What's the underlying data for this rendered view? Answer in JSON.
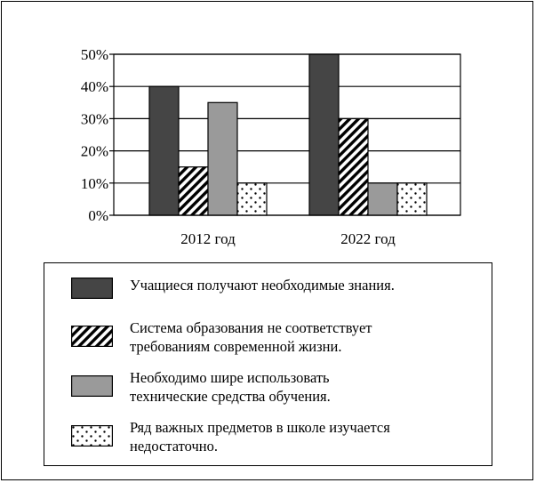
{
  "chart_data": {
    "type": "bar",
    "categories": [
      "2012 год",
      "2022 год"
    ],
    "series": [
      {
        "name": "Учащиеся получают необходимые знания.",
        "values": [
          40,
          50
        ],
        "fill": "dark"
      },
      {
        "name": "Система образования не соответствует требованиям современной жизни.",
        "values": [
          15,
          30
        ],
        "fill": "hatch"
      },
      {
        "name": "Необходимо шире использовать технические средства обучения.",
        "values": [
          35,
          10
        ],
        "fill": "gray"
      },
      {
        "name": "Ряд важных предметов в школе изучается недостаточно.",
        "values": [
          10,
          10
        ],
        "fill": "dots"
      }
    ],
    "yticks": [
      "0%",
      "10%",
      "20%",
      "30%",
      "40%",
      "50%"
    ],
    "ylim": [
      0,
      50
    ],
    "grid": true,
    "legend_position": "bottom"
  },
  "legend": {
    "items": [
      {
        "lines": [
          "Учащиеся получают необходимые знания."
        ]
      },
      {
        "lines": [
          "Система образования не соответствует",
          "требованиям современной жизни."
        ]
      },
      {
        "lines": [
          "Необходимо шире использовать",
          "технические средства обучения."
        ]
      },
      {
        "lines": [
          "Ряд важных предметов в школе изучается",
          "недостаточно."
        ]
      }
    ]
  },
  "colors": {
    "dark": "#454545",
    "gray": "#9a9a9a",
    "line": "#000000",
    "background": "#ffffff"
  }
}
